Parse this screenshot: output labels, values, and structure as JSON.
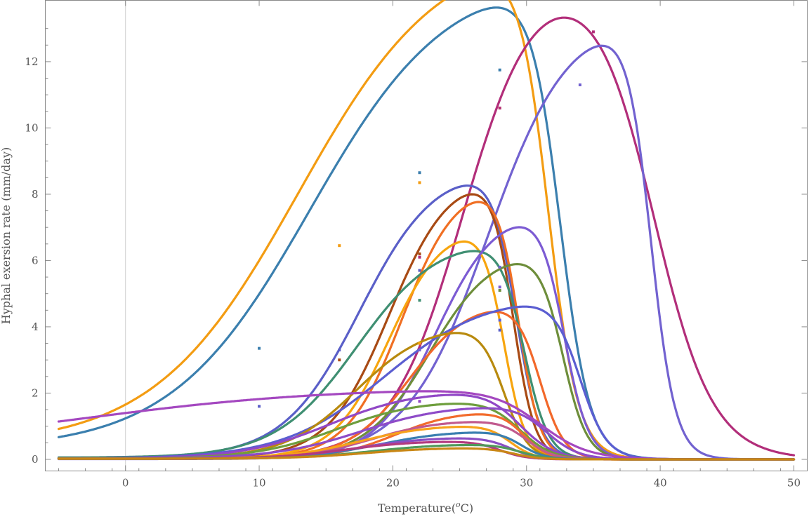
{
  "chart_data": {
    "type": "line",
    "title": "",
    "xlabel": "Temperature(",
    "xlabel_sup": "o",
    "xlabel_suffix": "C)",
    "ylabel": "Hyphal exersion rate (mm/day)",
    "xlim": [
      -6,
      51
    ],
    "ylim": [
      -0.35,
      13.85
    ],
    "x_ticks": [
      0,
      10,
      20,
      30,
      40,
      50
    ],
    "y_ticks": [
      0,
      2,
      4,
      6,
      8,
      10,
      12
    ],
    "grid": false,
    "legend": "none",
    "series": [
      {
        "color": "#3B7FAE",
        "peak": 12.2,
        "topt": 30.3,
        "tmax": 32.5,
        "base": 0.3,
        "steep": 0.088,
        "fall": 1.1,
        "points": [
          [
            10,
            3.35
          ],
          [
            22,
            8.65
          ],
          [
            28,
            11.75
          ]
        ]
      },
      {
        "color": "#F39C12",
        "peak": 11.85,
        "topt": 30.0,
        "tmax": 31.6,
        "base": 0.4,
        "steep": 0.085,
        "fall": 1.1,
        "points": [
          [
            16,
            6.45
          ],
          [
            22,
            8.35
          ],
          [
            28,
            10.6
          ]
        ]
      },
      {
        "color": "#B22E7A",
        "peak": 13.2,
        "topt": 33.8,
        "tmax": 39.5,
        "base": 0.02,
        "steep": 0.17,
        "fall": 2.2,
        "points": [
          [
            22,
            6.1
          ],
          [
            28,
            10.6
          ],
          [
            35,
            12.9
          ]
        ]
      },
      {
        "color": "#7262D0",
        "peak": 12.15,
        "topt": 36.8,
        "tmax": 39.3,
        "base": 0.02,
        "steep": 0.15,
        "fall": 0.9,
        "points": [
          [
            22,
            3.3
          ],
          [
            28,
            5.8
          ],
          [
            34,
            11.3
          ]
        ]
      },
      {
        "color": "#5A5FC8",
        "peak": 8.05,
        "topt": 26.6,
        "tmax": 29.2,
        "base": 0.05,
        "steep": 0.16,
        "fall": 0.9,
        "points": [
          [
            10,
            1.6
          ],
          [
            16,
            3.3
          ],
          [
            22,
            5.7
          ],
          [
            28,
            3.9
          ]
        ]
      },
      {
        "color": "#A84A14",
        "peak": 7.7,
        "topt": 27.0,
        "tmax": 29.0,
        "base": 0.03,
        "steep": 0.2,
        "fall": 0.8,
        "points": [
          [
            16,
            3.0
          ],
          [
            22,
            6.2
          ]
        ]
      },
      {
        "color": "#F06F23",
        "peak": 7.55,
        "topt": 27.3,
        "tmax": 29.4,
        "base": 0.02,
        "steep": 0.22,
        "fall": 0.8,
        "points": []
      },
      {
        "color": "#F7A50E",
        "peak": 6.35,
        "topt": 26.3,
        "tmax": 28.3,
        "base": 0.02,
        "steep": 0.22,
        "fall": 0.8,
        "points": [
          [
            22,
            3.5
          ]
        ]
      },
      {
        "color": "#3F8F72",
        "peak": 6.15,
        "topt": 27.0,
        "tmax": 29.8,
        "base": 0.05,
        "steep": 0.15,
        "fall": 0.9,
        "points": [
          [
            22,
            4.8
          ]
        ]
      },
      {
        "color": "#7C5BD3",
        "peak": 6.8,
        "topt": 30.5,
        "tmax": 32.8,
        "base": 0.01,
        "steep": 0.2,
        "fall": 0.9,
        "points": [
          [
            28,
            5.2
          ]
        ]
      },
      {
        "color": "#6E8E3B",
        "peak": 5.7,
        "topt": 30.4,
        "tmax": 32.7,
        "base": 0.02,
        "steep": 0.19,
        "fall": 0.9,
        "points": [
          [
            28,
            5.1
          ]
        ]
      },
      {
        "color": "#F2682A",
        "peak": 4.35,
        "topt": 28.5,
        "tmax": 31.0,
        "base": 0.02,
        "steep": 0.2,
        "fall": 0.9,
        "points": []
      },
      {
        "color": "#5B5ED1",
        "peak": 4.4,
        "topt": 31.5,
        "tmax": 34.0,
        "base": 0.02,
        "steep": 0.12,
        "fall": 1.0,
        "points": [
          [
            28,
            4.2
          ]
        ]
      },
      {
        "color": "#B88A0E",
        "peak": 3.7,
        "topt": 25.8,
        "tmax": 28.3,
        "base": 0.03,
        "steep": 0.17,
        "fall": 0.9,
        "points": []
      },
      {
        "color": "#9148C6",
        "peak": 1.9,
        "topt": 25.7,
        "tmax": 29.5,
        "base": 0.02,
        "steep": 0.14,
        "fall": 1.3,
        "points": [
          [
            22,
            1.75
          ]
        ]
      },
      {
        "color": "#6E9E3D",
        "peak": 1.65,
        "topt": 25.5,
        "tmax": 29.5,
        "base": 0.02,
        "steep": 0.15,
        "fall": 1.2,
        "points": []
      },
      {
        "color": "#A448C0",
        "peak": 1.7,
        "topt": 26.0,
        "tmax": 31.0,
        "base": 0.3,
        "steep": 0.05,
        "fall": 1.8,
        "points": []
      },
      {
        "color": "#8E4BC8",
        "peak": 1.5,
        "topt": 28.0,
        "tmax": 31.5,
        "base": 0.02,
        "steep": 0.14,
        "fall": 1.2,
        "points": []
      },
      {
        "color": "#F26B2C",
        "peak": 1.3,
        "topt": 27.5,
        "tmax": 29.8,
        "base": 0.02,
        "steep": 0.2,
        "fall": 0.9,
        "points": []
      },
      {
        "color": "#C15A8E",
        "peak": 1.1,
        "topt": 26.5,
        "tmax": 30.0,
        "base": 0.02,
        "steep": 0.18,
        "fall": 1.0,
        "points": []
      },
      {
        "color": "#F7A21B",
        "peak": 0.95,
        "topt": 26.0,
        "tmax": 28.8,
        "base": 0.02,
        "steep": 0.17,
        "fall": 0.9,
        "points": []
      },
      {
        "color": "#3A7FB0",
        "peak": 0.75,
        "topt": 27.5,
        "tmax": 29.6,
        "base": 0.02,
        "steep": 0.17,
        "fall": 0.9,
        "points": []
      },
      {
        "color": "#8A4EC4",
        "peak": 0.6,
        "topt": 26.0,
        "tmax": 28.8,
        "base": 0.02,
        "steep": 0.17,
        "fall": 1.0,
        "points": []
      },
      {
        "color": "#B33A7E",
        "peak": 0.5,
        "topt": 25.0,
        "tmax": 28.0,
        "base": 0.02,
        "steep": 0.17,
        "fall": 1.0,
        "points": []
      },
      {
        "color": "#4F9A5A",
        "peak": 0.4,
        "topt": 27.0,
        "tmax": 29.5,
        "base": 0.02,
        "steep": 0.17,
        "fall": 1.0,
        "points": []
      },
      {
        "color": "#C98715",
        "peak": 0.3,
        "topt": 26.5,
        "tmax": 29.0,
        "base": 0.02,
        "steep": 0.17,
        "fall": 1.0,
        "points": []
      }
    ]
  }
}
